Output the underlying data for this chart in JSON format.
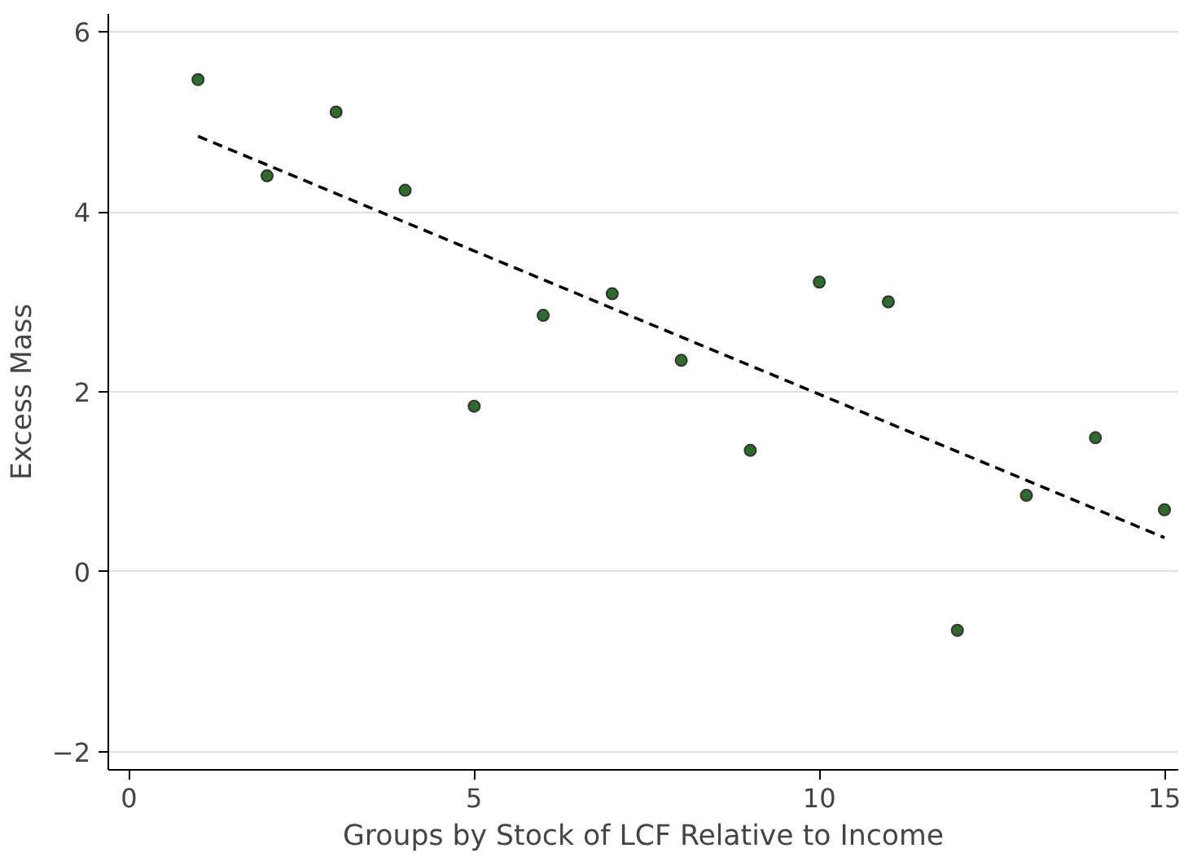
{
  "chart_data": {
    "type": "scatter",
    "xlabel": "Groups by Stock of LCF Relative to Income",
    "ylabel": "Excess Mass",
    "x": [
      1,
      2,
      3,
      4,
      5,
      6,
      7,
      8,
      9,
      10,
      11,
      12,
      13,
      14,
      15
    ],
    "series": [
      {
        "color": "#2e6b2e",
        "marker": "circle",
        "values": [
          5.47,
          4.4,
          5.11,
          4.24,
          1.84,
          2.85,
          3.09,
          2.35,
          1.35,
          3.22,
          3.0,
          -0.65,
          0.85,
          1.49,
          0.69
        ]
      },
      {
        "type": "line",
        "color": "#000000",
        "line_style": "dashed",
        "x": [
          1,
          15
        ],
        "values": [
          4.84,
          0.38
        ]
      }
    ],
    "xlim": [
      -0.3,
      15.2
    ],
    "ylim": [
      -2.2,
      6.2
    ],
    "xticks": [
      0,
      5,
      10,
      15
    ],
    "yticks": [
      -2,
      0,
      2,
      4,
      6
    ],
    "grid": "y"
  }
}
